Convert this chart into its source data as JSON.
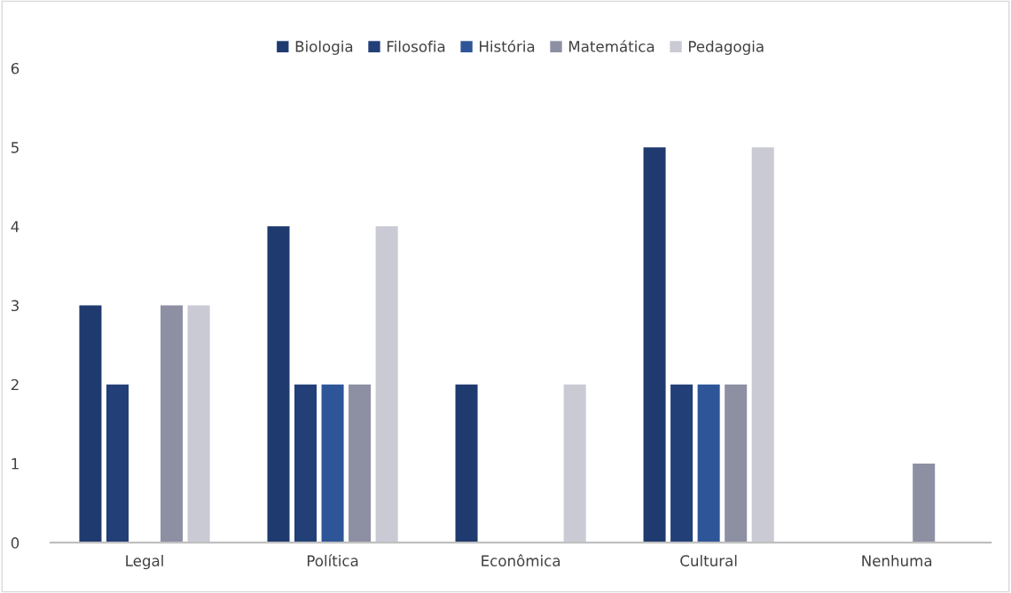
{
  "chart_data": {
    "type": "bar",
    "categories": [
      "Legal",
      "Política",
      "Econômica",
      "Cultural",
      "Nenhuma"
    ],
    "series": [
      {
        "name": "Biologia",
        "color": "#1f3a6e",
        "values": [
          3,
          4,
          2,
          5,
          0
        ]
      },
      {
        "name": "Filosofia",
        "color": "#223f78",
        "values": [
          2,
          2,
          0,
          2,
          0
        ]
      },
      {
        "name": "História",
        "color": "#2e5597",
        "values": [
          0,
          2,
          0,
          2,
          0
        ]
      },
      {
        "name": "Matemática",
        "color": "#8d8fa3",
        "values": [
          3,
          2,
          0,
          2,
          1
        ]
      },
      {
        "name": "Pedagogia",
        "color": "#c9cad3",
        "values": [
          3,
          4,
          2,
          5,
          0
        ]
      }
    ],
    "ylim": [
      0,
      6
    ],
    "yticks": [
      0,
      1,
      2,
      3,
      4,
      5,
      6
    ],
    "grid": false,
    "legend": "top"
  }
}
